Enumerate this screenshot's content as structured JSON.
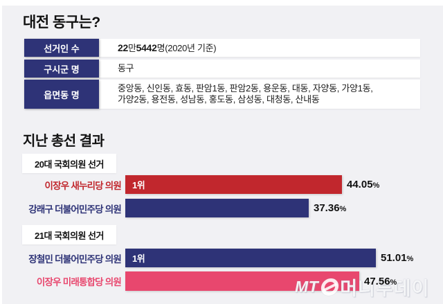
{
  "title": "대전 동구는?",
  "info_table": {
    "rows": [
      {
        "label": "선거인 수",
        "value_parts": {
          "bold1": "22",
          "regular1": "만",
          "bold2": "5442",
          "regular2": "명(2020년 기준)"
        }
      },
      {
        "label": "구시군 명",
        "value": "동구"
      },
      {
        "label": "읍면동 명",
        "value_line1": "중앙동, 신인동, 효동, 판암1동, 판암2동, 용운동, 대동, 자양동, 가양1동,",
        "value_line2": "가양2동, 용전동, 성남동, 홍도동, 삼성동, 대청동, 산내동"
      }
    ]
  },
  "results": {
    "title": "지난 총선 결과"
  },
  "chart_data": [
    {
      "type": "bar",
      "title": "20대 국회의원 선거",
      "orientation": "horizontal",
      "unit": "%",
      "categories": [
        "이장우 새누리당 의원",
        "강래구 더불어민주당 의원"
      ],
      "values": [
        44.05,
        37.36
      ],
      "colors": [
        "#c1272d",
        "#2e3377"
      ],
      "annotations": [
        "1위",
        null
      ],
      "xlim": [
        0,
        60
      ],
      "value_labels_shown": true,
      "grid": false,
      "legend": false
    },
    {
      "type": "bar",
      "title": "21대 국회의원 선거",
      "orientation": "horizontal",
      "unit": "%",
      "categories": [
        "장철민 더불어민주당 의원",
        "이장우 미래통합당 의원"
      ],
      "values": [
        51.01,
        47.56
      ],
      "colors": [
        "#2e3377",
        "#e8476e"
      ],
      "annotations": [
        "1위",
        null
      ],
      "xlim": [
        0,
        60
      ],
      "value_labels_shown": true,
      "grid": false,
      "legend": false
    }
  ],
  "watermark": {
    "mt_text": "MT",
    "symbol": "slashed-circle-icon",
    "brand_text": "머니투데이"
  },
  "colors": {
    "background_panel": "#f1f1f4",
    "badge_navy": "#2e3377",
    "bar_red": "#c1272d",
    "bar_navy": "#2e3377",
    "bar_pink": "#e8476e"
  }
}
